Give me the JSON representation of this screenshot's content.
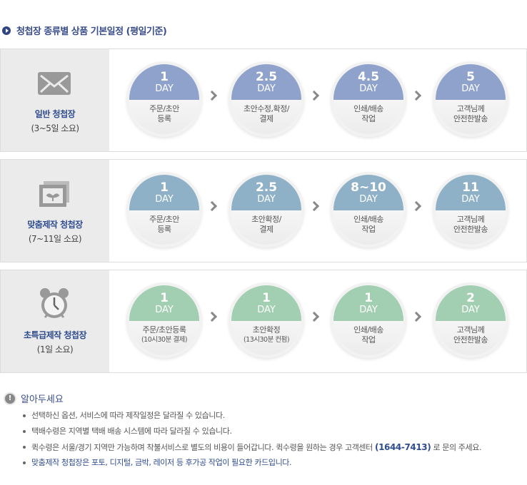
{
  "title": "청첩장 종류별 상품 기본일정 (평일기준)",
  "colors": {
    "general": "#8fa2cb",
    "custom": "#8fb1c8",
    "express": "#a2ceb2"
  },
  "rows": [
    {
      "name": "일반 청첩장",
      "sub": "(3~5일 소요)",
      "icon": "envelope-icon",
      "steps": [
        {
          "num": "1",
          "day": "DAY",
          "line1": "주문/초안",
          "line2": "등록"
        },
        {
          "num": "2.5",
          "day": "DAY",
          "line1": "초안수정,확정/",
          "line2": "결제"
        },
        {
          "num": "4.5",
          "day": "DAY",
          "line1": "인쇄/배송",
          "line2": "작업"
        },
        {
          "num": "5",
          "day": "DAY",
          "line1": "고객님께",
          "line2": "안전한발송"
        }
      ]
    },
    {
      "name": "맞춤제작 청첩장",
      "sub": "(7~11일 소요)",
      "icon": "photo-icon",
      "steps": [
        {
          "num": "1",
          "day": "DAY",
          "line1": "주문/초안",
          "line2": "등록"
        },
        {
          "num": "2.5",
          "day": "DAY",
          "line1": "초안확정/",
          "line2": "결제"
        },
        {
          "num": "8~10",
          "day": "DAY",
          "line1": "인쇄/배송",
          "line2": "작업"
        },
        {
          "num": "11",
          "day": "DAY",
          "line1": "고객님께",
          "line2": "안전한발송"
        }
      ]
    },
    {
      "name": "초특급제작 청첩장",
      "sub": "(1일 소요)",
      "icon": "alarm-clock-icon",
      "steps": [
        {
          "num": "1",
          "day": "DAY",
          "line1": "주문/초안등록",
          "line2": "(10시30분 결제)"
        },
        {
          "num": "1",
          "day": "DAY",
          "line1": "초안확정",
          "line2": "(13시30분 컨펌)"
        },
        {
          "num": "1",
          "day": "DAY",
          "line1": "인쇄/배송",
          "line2": "작업"
        },
        {
          "num": "2",
          "day": "DAY",
          "line1": "고객님께",
          "line2": "안전한발송"
        }
      ]
    }
  ],
  "notice": {
    "title": "알아두세요",
    "items": [
      "선택하신 옵션, 서비스에 따라 제작일정은 달라질 수 있습니다.",
      "택배수령은 지역별 택배 배송 시스템에 따라 달라질 수 있습니다.",
      "퀵수령은 서울/경기 지역만 가능하며 착불서비스로 별도의 비용이 들어갑니다. 퀵수령을 원하는 경우 고객센터",
      "맞춤제작 청첩장은 포토, 디지털, 금박, 레이저 등 후가공 작업이 필요한 카드입니다."
    ],
    "phone": "(1644-7413)",
    "after_phone": " 로 문의 주세요."
  }
}
